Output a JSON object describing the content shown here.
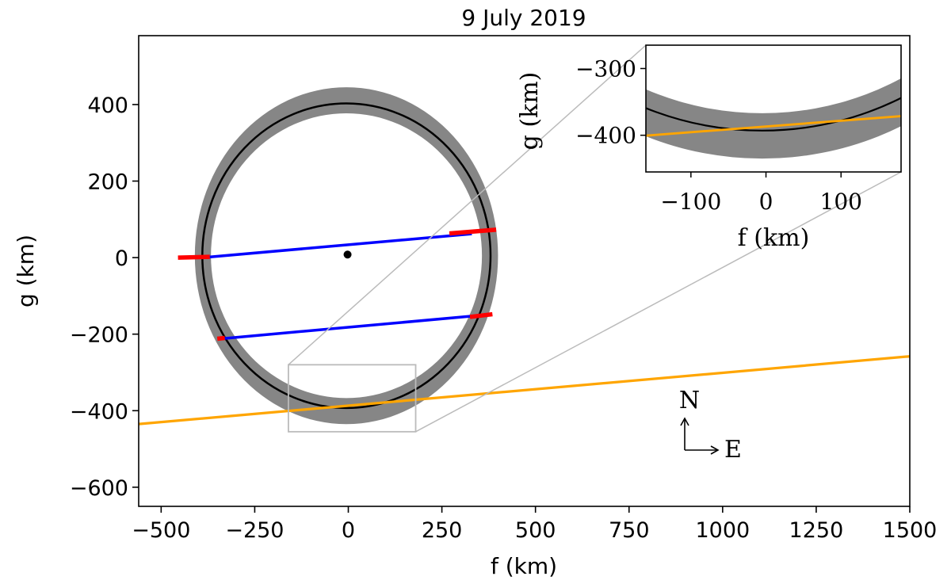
{
  "chart_data": [
    {
      "type": "line",
      "title": "9 July 2019",
      "xlabel": "f (km)",
      "ylabel": "g (km)",
      "xlim": [
        -560,
        1500
      ],
      "ylim": [
        -650,
        580
      ],
      "xticks": [
        -500,
        -250,
        0,
        250,
        500,
        750,
        1000,
        1250,
        1500
      ],
      "xtick_labels": [
        "−500",
        "−250",
        "0",
        "250",
        "500",
        "750",
        "1000",
        "1250",
        "1500"
      ],
      "yticks": [
        -600,
        -400,
        -200,
        0,
        200,
        400
      ],
      "ytick_labels": [
        "−600",
        "−400",
        "−200",
        "0",
        "200",
        "400"
      ],
      "grid": false,
      "ellipse_fit": {
        "center": [
          -5,
          5
        ],
        "semi_axes_km": [
          385,
          398
        ],
        "color": "#000000"
      },
      "uncertainty_band": {
        "center": [
          -5,
          5
        ],
        "outer_semi_axes_km": [
          405,
          440
        ],
        "inner_semi_axes_km": [
          362,
          372
        ],
        "color": "#808080"
      },
      "chords": [
        {
          "color": "#0000ff",
          "x": [
            -390,
            330
          ],
          "y": [
            0,
            62
          ]
        },
        {
          "color": "#0000ff",
          "x": [
            -340,
            340
          ],
          "y": [
            -212,
            -152
          ]
        }
      ],
      "chord_error_bars": [
        {
          "color": "#ff0000",
          "x": [
            -455,
            -370
          ],
          "y": [
            0,
            2
          ]
        },
        {
          "color": "#ff0000",
          "x": [
            270,
            395
          ],
          "y": [
            63,
            73
          ]
        },
        {
          "color": "#ff0000",
          "x": [
            -350,
            -330
          ],
          "y": [
            -212,
            -210
          ]
        },
        {
          "color": "#ff0000",
          "x": [
            325,
            385
          ],
          "y": [
            -155,
            -148
          ]
        }
      ],
      "negative_chords": [
        {
          "color": "#ffa500",
          "x": [
            -560,
            1500
          ],
          "y": [
            -435,
            -258
          ]
        }
      ],
      "centre_point": {
        "x": -2,
        "y": 8,
        "color": "#000000"
      },
      "zoom_box": {
        "x": [
          -160,
          180
        ],
        "y": [
          -455,
          -280
        ],
        "color": "#bbbbbb"
      },
      "compass": {
        "north": "N",
        "east": "E"
      }
    },
    {
      "type": "line",
      "title": "",
      "xlabel": "f (km)",
      "ylabel": "g (km)",
      "xlim": [
        -160,
        180
      ],
      "ylim": [
        -455,
        -265
      ],
      "xticks": [
        -100,
        0,
        100
      ],
      "xtick_labels": [
        "−100",
        "0",
        "100"
      ],
      "yticks": [
        -400,
        -300
      ],
      "ytick_labels": [
        "−400",
        "−300"
      ],
      "grid": false
    }
  ]
}
